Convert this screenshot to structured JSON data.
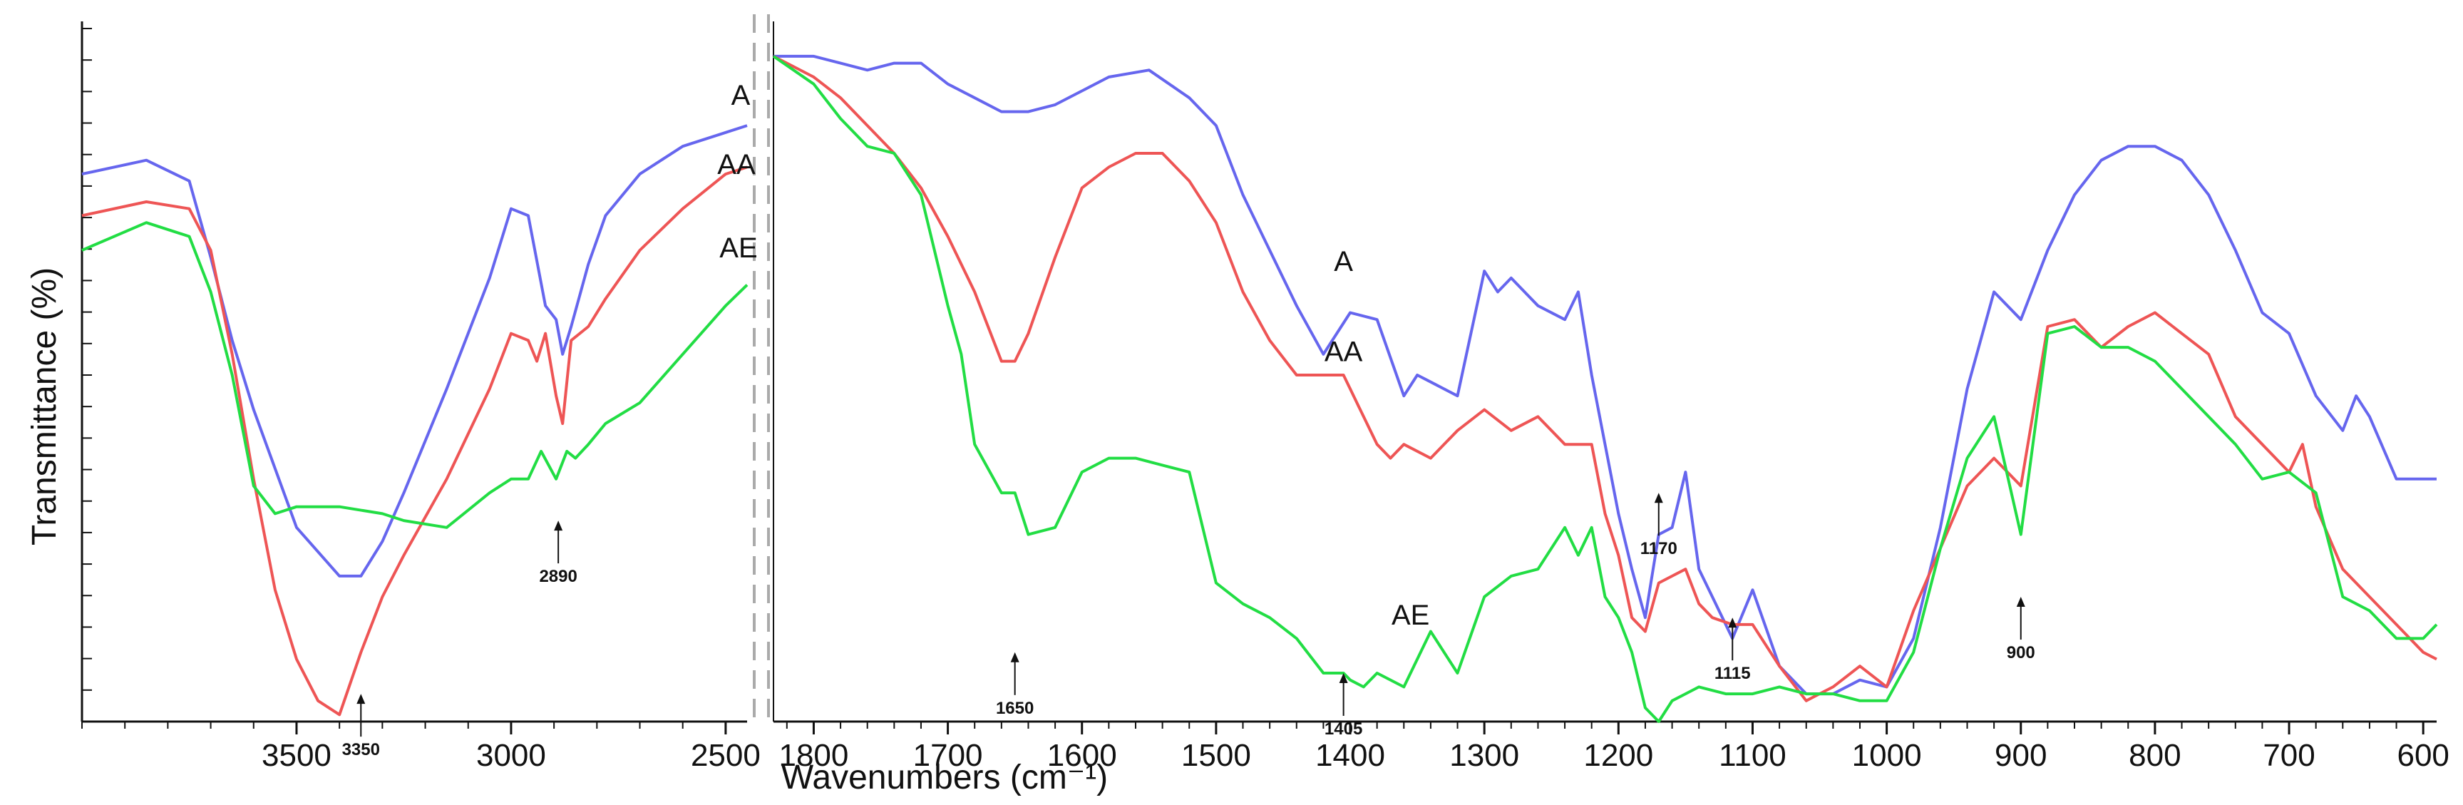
{
  "chart_data": {
    "type": "line",
    "xlabel": "Wavenumbers (cm⁻¹)",
    "ylabel": "Transmittance (%)",
    "y_tick_labels": false,
    "grid": false,
    "panels": [
      {
        "id": "left",
        "xlim": [
          4000,
          2450
        ],
        "ticks": [
          3500,
          3000,
          2500
        ]
      },
      {
        "id": "right",
        "xlim": [
          1830,
          590
        ],
        "ticks": [
          1800,
          1700,
          1600,
          1500,
          1400,
          1300,
          1200,
          1100,
          1000,
          900,
          800,
          700,
          600
        ]
      }
    ],
    "ylim": [
      0,
      100
    ],
    "colors": {
      "A": "#6666ee",
      "AA": "#ee5555",
      "AE": "#22dd44"
    },
    "series": [
      {
        "name": "A",
        "left": {
          "x": [
            4000,
            3850,
            3750,
            3700,
            3650,
            3600,
            3500,
            3400,
            3350,
            3300,
            3250,
            3150,
            3050,
            3000,
            2960,
            2920,
            2895,
            2880,
            2860,
            2820,
            2780,
            2700,
            2600,
            2500,
            2450
          ],
          "y": [
            79,
            81,
            78,
            67,
            55,
            45,
            28,
            21,
            21,
            26,
            33,
            48,
            64,
            74,
            73,
            60,
            58,
            53,
            57,
            66,
            73,
            79,
            83,
            85,
            86
          ]
        },
        "right": {
          "x": [
            1830,
            1800,
            1780,
            1760,
            1740,
            1720,
            1700,
            1680,
            1660,
            1640,
            1620,
            1600,
            1580,
            1550,
            1520,
            1500,
            1480,
            1460,
            1440,
            1420,
            1400,
            1380,
            1360,
            1350,
            1340,
            1320,
            1300,
            1290,
            1280,
            1270,
            1260,
            1240,
            1230,
            1220,
            1210,
            1200,
            1190,
            1180,
            1170,
            1160,
            1150,
            1140,
            1130,
            1115,
            1100,
            1080,
            1060,
            1040,
            1020,
            1000,
            980,
            960,
            940,
            920,
            900,
            880,
            860,
            840,
            820,
            800,
            780,
            760,
            740,
            720,
            700,
            680,
            660,
            650,
            640,
            620,
            600,
            590
          ],
          "y": [
            96,
            96,
            95,
            94,
            95,
            95,
            92,
            90,
            88,
            88,
            89,
            91,
            93,
            94,
            90,
            86,
            76,
            68,
            60,
            53,
            59,
            58,
            47,
            50,
            49,
            47,
            65,
            62,
            64,
            62,
            60,
            58,
            62,
            50,
            40,
            30,
            22,
            15,
            27,
            28,
            36,
            22,
            18,
            12,
            19,
            8,
            4,
            4,
            6,
            5,
            12,
            28,
            48,
            62,
            58,
            68,
            76,
            81,
            83,
            83,
            81,
            76,
            68,
            59,
            56,
            47,
            42,
            47,
            44,
            35,
            35,
            35
          ]
        }
      },
      {
        "name": "AA",
        "left": {
          "x": [
            4000,
            3850,
            3750,
            3700,
            3650,
            3600,
            3550,
            3500,
            3450,
            3400,
            3350,
            3300,
            3250,
            3150,
            3050,
            3000,
            2960,
            2940,
            2920,
            2895,
            2880,
            2860,
            2820,
            2780,
            2700,
            2600,
            2500,
            2450
          ],
          "y": [
            73,
            75,
            74,
            68,
            53,
            35,
            19,
            9,
            3,
            1,
            10,
            18,
            24,
            35,
            48,
            56,
            55,
            52,
            56,
            47,
            43,
            55,
            57,
            61,
            68,
            74,
            79,
            80
          ]
        },
        "right": {
          "x": [
            1830,
            1800,
            1780,
            1760,
            1740,
            1720,
            1700,
            1680,
            1660,
            1650,
            1640,
            1620,
            1600,
            1580,
            1560,
            1540,
            1520,
            1500,
            1480,
            1460,
            1440,
            1420,
            1405,
            1400,
            1390,
            1380,
            1370,
            1360,
            1340,
            1320,
            1300,
            1280,
            1260,
            1240,
            1220,
            1210,
            1200,
            1190,
            1180,
            1170,
            1160,
            1150,
            1140,
            1130,
            1115,
            1100,
            1080,
            1060,
            1040,
            1020,
            1000,
            980,
            960,
            940,
            920,
            900,
            880,
            860,
            840,
            820,
            800,
            780,
            760,
            740,
            720,
            700,
            690,
            680,
            660,
            640,
            620,
            600,
            590
          ],
          "y": [
            96,
            93,
            90,
            86,
            82,
            77,
            70,
            62,
            52,
            52,
            56,
            67,
            77,
            80,
            82,
            82,
            78,
            72,
            62,
            55,
            50,
            50,
            50,
            48,
            44,
            40,
            38,
            40,
            38,
            42,
            45,
            42,
            44,
            40,
            40,
            30,
            24,
            15,
            13,
            20,
            21,
            22,
            17,
            15,
            14,
            14,
            8,
            3,
            5,
            8,
            5,
            16,
            25,
            34,
            38,
            34,
            57,
            58,
            54,
            57,
            59,
            56,
            53,
            44,
            40,
            36,
            40,
            31,
            22,
            18,
            14,
            10,
            9
          ]
        }
      },
      {
        "name": "AE",
        "left": {
          "x": [
            4000,
            3850,
            3750,
            3700,
            3650,
            3600,
            3550,
            3500,
            3400,
            3300,
            3250,
            3150,
            3050,
            3000,
            2960,
            2930,
            2895,
            2870,
            2850,
            2820,
            2780,
            2700,
            2600,
            2500,
            2450
          ],
          "y": [
            68,
            72,
            70,
            62,
            50,
            34,
            30,
            31,
            31,
            30,
            29,
            28,
            33,
            35,
            35,
            39,
            35,
            39,
            38,
            40,
            43,
            46,
            53,
            60,
            63
          ]
        },
        "right": {
          "x": [
            1830,
            1800,
            1780,
            1760,
            1740,
            1720,
            1700,
            1690,
            1680,
            1660,
            1650,
            1640,
            1620,
            1600,
            1580,
            1560,
            1540,
            1520,
            1500,
            1480,
            1460,
            1440,
            1420,
            1405,
            1400,
            1390,
            1380,
            1360,
            1340,
            1320,
            1300,
            1280,
            1260,
            1240,
            1230,
            1220,
            1210,
            1200,
            1190,
            1180,
            1170,
            1160,
            1150,
            1140,
            1120,
            1100,
            1080,
            1060,
            1040,
            1020,
            1000,
            980,
            960,
            940,
            920,
            900,
            880,
            860,
            840,
            820,
            800,
            780,
            760,
            740,
            720,
            700,
            680,
            660,
            640,
            620,
            600,
            590
          ],
          "y": [
            96,
            92,
            87,
            83,
            82,
            76,
            60,
            53,
            40,
            33,
            33,
            27,
            28,
            36,
            38,
            38,
            37,
            36,
            20,
            17,
            15,
            12,
            7,
            7,
            6,
            5,
            7,
            5,
            13,
            7,
            18,
            21,
            22,
            28,
            24,
            28,
            18,
            15,
            10,
            2,
            0,
            3,
            4,
            5,
            4,
            4,
            5,
            4,
            4,
            3,
            3,
            10,
            25,
            38,
            44,
            27,
            56,
            57,
            54,
            54,
            52,
            48,
            44,
            40,
            35,
            36,
            33,
            18,
            16,
            12,
            12,
            14
          ]
        }
      }
    ],
    "annotations": {
      "left": [
        {
          "label": "A",
          "x": 2465,
          "y": 89
        },
        {
          "label": "AA",
          "x": 2475,
          "y": 79
        },
        {
          "label": "AE",
          "x": 2470,
          "y": 67
        }
      ],
      "right": [
        {
          "label": "A",
          "x": 1405,
          "y": 65
        },
        {
          "label": "AA",
          "x": 1405,
          "y": 52
        },
        {
          "label": "AE",
          "x": 1355,
          "y": 14
        }
      ]
    },
    "peak_labels": [
      {
        "label": "3350",
        "panel": "left",
        "x": 3350,
        "y": 4
      },
      {
        "label": "2890",
        "panel": "left",
        "x": 2890,
        "y": 29
      },
      {
        "label": "1650",
        "panel": "right",
        "x": 1650,
        "y": 10
      },
      {
        "label": "1405",
        "panel": "right",
        "x": 1405,
        "y": 7
      },
      {
        "label": "1170",
        "panel": "right",
        "x": 1170,
        "y": 33
      },
      {
        "label": "1115",
        "panel": "right",
        "x": 1115,
        "y": 15
      },
      {
        "label": "900",
        "panel": "right",
        "x": 900,
        "y": 18
      }
    ]
  }
}
